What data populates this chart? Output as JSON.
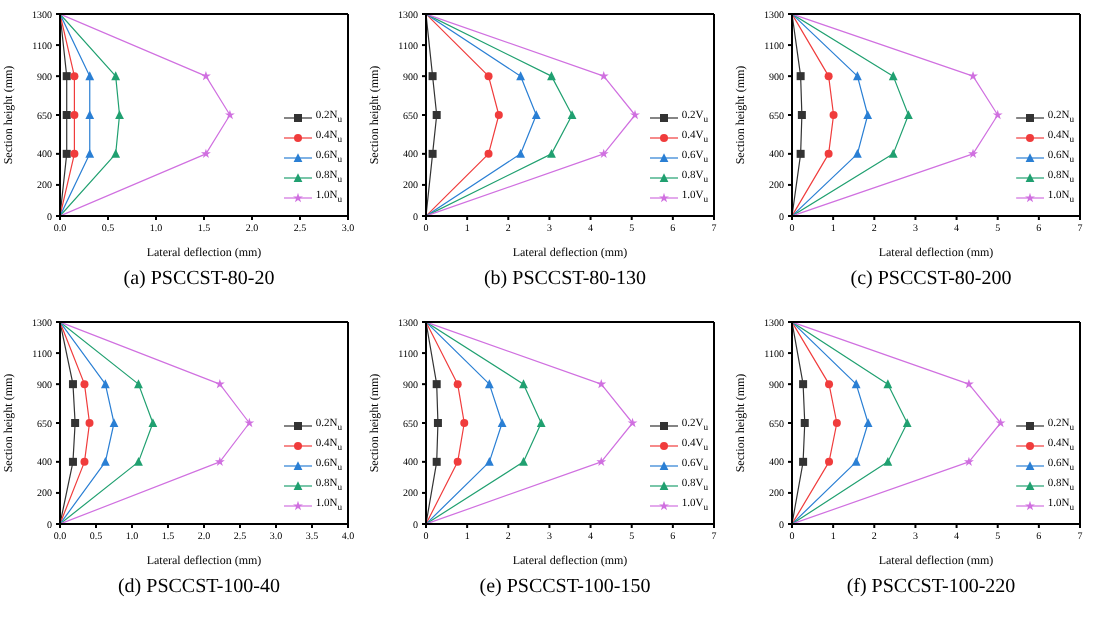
{
  "chart_data": [
    {
      "type": "line",
      "title": "(a) PSCCST-80-20",
      "xlabel": "Lateral deflection (mm)",
      "ylabel": "Section height (mm)",
      "xlim": [
        0,
        3
      ],
      "xticks": [
        {
          "value": 0,
          "label": "0.0"
        },
        {
          "value": 0.5,
          "label": "0.5"
        },
        {
          "value": 1,
          "label": "1.0"
        },
        {
          "value": 1.5,
          "label": "1.5"
        },
        {
          "value": 2,
          "label": "2.0"
        },
        {
          "value": 2.5,
          "label": "2.5"
        },
        {
          "value": 3,
          "label": "3.0"
        }
      ],
      "ylim": [
        0,
        1300
      ],
      "yticks": [
        0,
        200,
        400,
        650,
        900,
        1100,
        1300
      ],
      "legend": "bottom right",
      "grid": false,
      "series": [
        {
          "name": "0.2N$_{u}$",
          "color": "#333333",
          "marker": "square",
          "x": [
            0,
            0.07,
            0.07,
            0.07,
            0
          ],
          "values": [
            0,
            400,
            650,
            900,
            1300
          ]
        },
        {
          "name": "0.4N$_{u}$",
          "color": "#f03c3c",
          "marker": "circle",
          "x": [
            0,
            0.15,
            0.15,
            0.15,
            0
          ],
          "values": [
            0,
            400,
            650,
            900,
            1300
          ]
        },
        {
          "name": "0.6N$_{u}$",
          "color": "#2a7fd4",
          "marker": "triangle",
          "x": [
            0,
            0.31,
            0.31,
            0.31,
            0
          ],
          "values": [
            0,
            400,
            650,
            900,
            1300
          ]
        },
        {
          "name": "0.8N$_{u}$",
          "color": "#20a070",
          "marker": "triangle",
          "x": [
            0,
            0.58,
            0.62,
            0.58,
            0
          ],
          "values": [
            0,
            400,
            650,
            900,
            1300
          ]
        },
        {
          "name": "1.0N$_{u}$",
          "color": "#d070e0",
          "marker": "star",
          "x": [
            0,
            1.52,
            1.77,
            1.52,
            0
          ],
          "values": [
            0,
            400,
            650,
            900,
            1300
          ]
        }
      ]
    },
    {
      "type": "line",
      "title": "(b) PSCCST-80-130",
      "xlabel": "Lateral deflection (mm)",
      "ylabel": "Section height (mm)",
      "xlim": [
        0,
        7
      ],
      "xticks": [
        0,
        1,
        2,
        3,
        4,
        5,
        6,
        7
      ],
      "ylim": [
        0,
        1300
      ],
      "yticks": [
        0,
        200,
        400,
        650,
        900,
        1100,
        1300
      ],
      "legend": "bottom right",
      "grid": false,
      "series": [
        {
          "name": "0.2V$_{u}$",
          "color": "#333333",
          "marker": "square",
          "x": [
            0,
            0.16,
            0.26,
            0.16,
            0
          ],
          "values": [
            0,
            400,
            650,
            900,
            1300
          ]
        },
        {
          "name": "0.4V$_{u}$",
          "color": "#f03c3c",
          "marker": "circle",
          "x": [
            0,
            1.52,
            1.77,
            1.52,
            0
          ],
          "values": [
            0,
            400,
            650,
            900,
            1300
          ]
        },
        {
          "name": "0.6V$_{u}$",
          "color": "#2a7fd4",
          "marker": "triangle",
          "x": [
            0,
            2.3,
            2.68,
            2.3,
            0
          ],
          "values": [
            0,
            400,
            650,
            900,
            1300
          ]
        },
        {
          "name": "0.8V$_{u}$",
          "color": "#20a070",
          "marker": "triangle",
          "x": [
            0,
            3.05,
            3.55,
            3.05,
            0
          ],
          "values": [
            0,
            400,
            650,
            900,
            1300
          ]
        },
        {
          "name": "1.0V$_{u}$",
          "color": "#d070e0",
          "marker": "star",
          "x": [
            0,
            4.32,
            5.08,
            4.32,
            0
          ],
          "values": [
            0,
            400,
            650,
            900,
            1300
          ]
        }
      ]
    },
    {
      "type": "line",
      "title": "(c) PSCCST-80-200",
      "xlabel": "Lateral deflection (mm)",
      "ylabel": "Section height (mm)",
      "xlim": [
        0,
        7
      ],
      "xticks": [
        0,
        1,
        2,
        3,
        4,
        5,
        6,
        7
      ],
      "ylim": [
        0,
        1300
      ],
      "yticks": [
        0,
        200,
        400,
        650,
        900,
        1100,
        1300
      ],
      "legend": "bottom right",
      "grid": false,
      "series": [
        {
          "name": "0.2N$_{u}$",
          "color": "#333333",
          "marker": "square",
          "x": [
            0,
            0.21,
            0.24,
            0.21,
            0
          ],
          "values": [
            0,
            400,
            650,
            900,
            1300
          ]
        },
        {
          "name": "0.4N$_{u}$",
          "color": "#f03c3c",
          "marker": "circle",
          "x": [
            0,
            0.89,
            1.01,
            0.89,
            0
          ],
          "values": [
            0,
            400,
            650,
            900,
            1300
          ]
        },
        {
          "name": "0.6N$_{u}$",
          "color": "#2a7fd4",
          "marker": "triangle",
          "x": [
            0,
            1.59,
            1.84,
            1.59,
            0
          ],
          "values": [
            0,
            400,
            650,
            900,
            1300
          ]
        },
        {
          "name": "0.8N$_{u}$",
          "color": "#20a070",
          "marker": "triangle",
          "x": [
            0,
            2.46,
            2.83,
            2.46,
            0
          ],
          "values": [
            0,
            400,
            650,
            900,
            1300
          ]
        },
        {
          "name": "1.0N$_{u}$",
          "color": "#d070e0",
          "marker": "star",
          "x": [
            0,
            4.4,
            5.0,
            4.4,
            0
          ],
          "values": [
            0,
            400,
            650,
            900,
            1300
          ]
        }
      ]
    },
    {
      "type": "line",
      "title": "(d) PSCCST-100-40",
      "xlabel": "Lateral deflection (mm)",
      "ylabel": "Section height (mm)",
      "xlim": [
        0,
        4
      ],
      "xticks": [
        {
          "value": 0,
          "label": "0.0"
        },
        {
          "value": 0.5,
          "label": "0.5"
        },
        {
          "value": 1,
          "label": "1.0"
        },
        {
          "value": 1.5,
          "label": "1.5"
        },
        {
          "value": 2,
          "label": "2.0"
        },
        {
          "value": 2.5,
          "label": "2.5"
        },
        {
          "value": 3,
          "label": "3.0"
        },
        {
          "value": 3.5,
          "label": "3.5"
        },
        {
          "value": 4,
          "label": "4.0"
        }
      ],
      "ylim": [
        0,
        1300
      ],
      "yticks": [
        0,
        200,
        400,
        650,
        900,
        1100,
        1300
      ],
      "legend": "bottom right",
      "grid": false,
      "series": [
        {
          "name": "0.2N$_{u}$",
          "color": "#333333",
          "marker": "square",
          "x": [
            0,
            0.18,
            0.21,
            0.18,
            0
          ],
          "values": [
            0,
            400,
            650,
            900,
            1300
          ]
        },
        {
          "name": "0.4N$_{u}$",
          "color": "#f03c3c",
          "marker": "circle",
          "x": [
            0,
            0.34,
            0.41,
            0.34,
            0
          ],
          "values": [
            0,
            400,
            650,
            900,
            1300
          ]
        },
        {
          "name": "0.6N$_{u}$",
          "color": "#2a7fd4",
          "marker": "triangle",
          "x": [
            0,
            0.63,
            0.75,
            0.63,
            0
          ],
          "values": [
            0,
            400,
            650,
            900,
            1300
          ]
        },
        {
          "name": "0.8N$_{u}$",
          "color": "#20a070",
          "marker": "triangle",
          "x": [
            0,
            1.09,
            1.29,
            1.09,
            0
          ],
          "values": [
            0,
            400,
            650,
            900,
            1300
          ]
        },
        {
          "name": "1.0N$_{u}$",
          "color": "#d070e0",
          "marker": "star",
          "x": [
            0,
            2.22,
            2.63,
            2.22,
            0
          ],
          "values": [
            0,
            400,
            650,
            900,
            1300
          ]
        }
      ]
    },
    {
      "type": "line",
      "title": "(e) PSCCST-100-150",
      "xlabel": "Lateral deflection (mm)",
      "ylabel": "Section height (mm)",
      "xlim": [
        0,
        7
      ],
      "xticks": [
        0,
        1,
        2,
        3,
        4,
        5,
        6,
        7
      ],
      "ylim": [
        0,
        1300
      ],
      "yticks": [
        0,
        200,
        400,
        650,
        900,
        1100,
        1300
      ],
      "legend": "bottom right",
      "grid": false,
      "series": [
        {
          "name": "0.2V$_{u}$",
          "color": "#333333",
          "marker": "square",
          "x": [
            0,
            0.26,
            0.29,
            0.26,
            0
          ],
          "values": [
            0,
            400,
            650,
            900,
            1300
          ]
        },
        {
          "name": "0.4V$_{u}$",
          "color": "#f03c3c",
          "marker": "circle",
          "x": [
            0,
            0.77,
            0.93,
            0.77,
            0
          ],
          "values": [
            0,
            400,
            650,
            900,
            1300
          ]
        },
        {
          "name": "0.6V$_{u}$",
          "color": "#2a7fd4",
          "marker": "triangle",
          "x": [
            0,
            1.54,
            1.85,
            1.54,
            0
          ],
          "values": [
            0,
            400,
            650,
            900,
            1300
          ]
        },
        {
          "name": "0.8V$_{u}$",
          "color": "#20a070",
          "marker": "triangle",
          "x": [
            0,
            2.37,
            2.8,
            2.37,
            0
          ],
          "values": [
            0,
            400,
            650,
            900,
            1300
          ]
        },
        {
          "name": "1.0V$_{u}$",
          "color": "#d070e0",
          "marker": "star",
          "x": [
            0,
            4.26,
            5.02,
            4.26,
            0
          ],
          "values": [
            0,
            400,
            650,
            900,
            1300
          ]
        }
      ]
    },
    {
      "type": "line",
      "title": "(f) PSCCST-100-220",
      "xlabel": "Lateral deflection (mm)",
      "ylabel": "Section height (mm)",
      "xlim": [
        0,
        7
      ],
      "xticks": [
        0,
        1,
        2,
        3,
        4,
        5,
        6,
        7
      ],
      "ylim": [
        0,
        1300
      ],
      "yticks": [
        0,
        200,
        400,
        650,
        900,
        1100,
        1300
      ],
      "legend": "bottom right",
      "grid": false,
      "series": [
        {
          "name": "0.2N$_{u}$",
          "color": "#333333",
          "marker": "square",
          "x": [
            0,
            0.27,
            0.31,
            0.27,
            0
          ],
          "values": [
            0,
            400,
            650,
            900,
            1300
          ]
        },
        {
          "name": "0.4N$_{u}$",
          "color": "#f03c3c",
          "marker": "circle",
          "x": [
            0,
            0.9,
            1.09,
            0.9,
            0
          ],
          "values": [
            0,
            400,
            650,
            900,
            1300
          ]
        },
        {
          "name": "0.6N$_{u}$",
          "color": "#2a7fd4",
          "marker": "triangle",
          "x": [
            0,
            1.56,
            1.85,
            1.56,
            0
          ],
          "values": [
            0,
            400,
            650,
            900,
            1300
          ]
        },
        {
          "name": "0.8N$_{u}$",
          "color": "#20a070",
          "marker": "triangle",
          "x": [
            0,
            2.33,
            2.8,
            2.33,
            0
          ],
          "values": [
            0,
            400,
            650,
            900,
            1300
          ]
        },
        {
          "name": "1.0N$_{u}$",
          "color": "#d070e0",
          "marker": "star",
          "x": [
            0,
            4.3,
            5.07,
            4.3,
            0
          ],
          "values": [
            0,
            400,
            650,
            900,
            1300
          ]
        }
      ]
    }
  ]
}
